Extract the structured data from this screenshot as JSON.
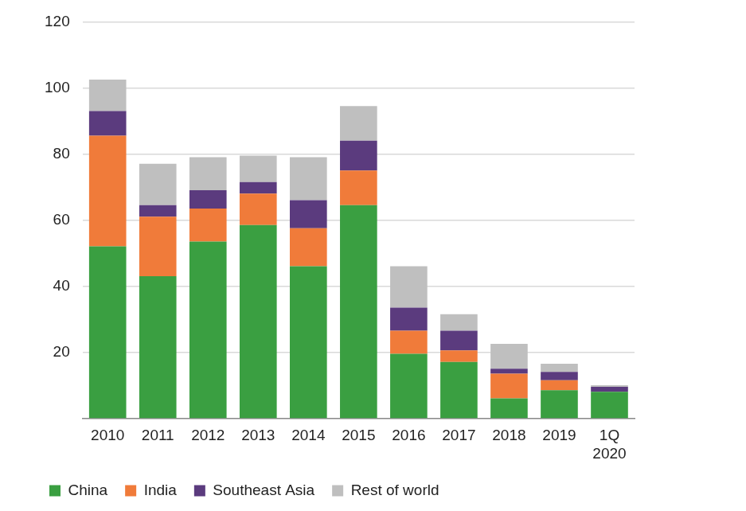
{
  "chart_data": {
    "type": "bar",
    "stacked": true,
    "grid": true,
    "legend": "bottom",
    "categories": [
      "2010",
      "2011",
      "2012",
      "2013",
      "2014",
      "2015",
      "2016",
      "2017",
      "2018",
      "2019",
      "1Q 2020"
    ],
    "series": [
      {
        "name": "China",
        "color": "#3a9f41",
        "values": [
          52,
          43,
          53.5,
          58.5,
          46,
          64.5,
          19.5,
          17,
          6,
          8.5,
          8
        ]
      },
      {
        "name": "India",
        "color": "#f07b3a",
        "values": [
          33.5,
          18,
          10,
          9.5,
          11.5,
          10.5,
          7,
          3.5,
          7.5,
          3,
          0
        ]
      },
      {
        "name": "Southeast Asia",
        "color": "#5b3b7e",
        "values": [
          7.5,
          3.5,
          5.5,
          3.5,
          8.5,
          9,
          7,
          6,
          1.5,
          2.5,
          1.5
        ]
      },
      {
        "name": "Rest of world",
        "color": "#bfbfbf",
        "values": [
          9.5,
          12.5,
          10,
          8,
          13,
          10.5,
          12.5,
          5,
          7.5,
          2.5,
          0.5
        ]
      }
    ],
    "ylim": [
      0,
      120
    ],
    "yticks": [
      20,
      40,
      60,
      80,
      100,
      120
    ]
  }
}
